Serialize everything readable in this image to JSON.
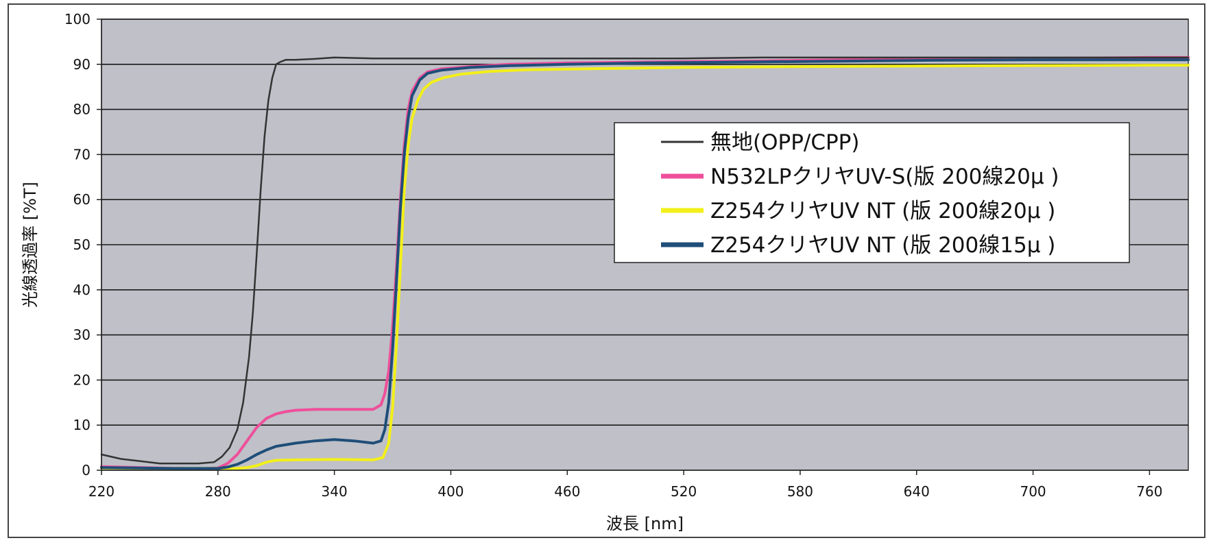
{
  "chart_data": {
    "type": "line",
    "title": "",
    "xlabel": "波長 [nm]",
    "ylabel": "光線透過率 [%T]",
    "xlim": [
      220,
      780
    ],
    "ylim": [
      0,
      100
    ],
    "xticks": [
      220,
      280,
      340,
      400,
      460,
      520,
      580,
      640,
      700,
      760
    ],
    "xtick_labels": [
      "220",
      "280",
      "340",
      "400",
      "460",
      "520",
      "580",
      "640",
      "700",
      "760"
    ],
    "yticks": [
      0,
      10,
      20,
      30,
      40,
      50,
      60,
      70,
      80,
      90,
      100
    ],
    "ytick_labels": [
      "0",
      "10",
      "20",
      "30",
      "40",
      "50",
      "60",
      "70",
      "80",
      "90",
      "100"
    ],
    "grid": "horizontal",
    "plot_background": "#bfc0c8",
    "legend_position": "upper-right inside plot",
    "series": [
      {
        "name": "無地(OPP/CPP)",
        "color": "#333333",
        "x": [
          220,
          230,
          240,
          250,
          260,
          270,
          278,
          282,
          286,
          290,
          293,
          296,
          298,
          300,
          302,
          304,
          306,
          308,
          310,
          312,
          315,
          320,
          330,
          340,
          360,
          380,
          400,
          440,
          480,
          520,
          560,
          600,
          640,
          680,
          720,
          760,
          780
        ],
        "y": [
          3.5,
          2.5,
          2,
          1.5,
          1.5,
          1.5,
          1.8,
          3,
          5,
          9,
          15,
          25,
          35,
          48,
          62,
          74,
          82,
          87,
          90,
          90.5,
          91,
          91,
          91.2,
          91.5,
          91.3,
          91.3,
          91.3,
          91.3,
          91.3,
          91.3,
          91.5,
          91.5,
          91.5,
          91.5,
          91.5,
          91.5,
          91.5
        ]
      },
      {
        "name": "N532LPクリヤUV-S(版 200線20µ )",
        "color": "#ee4f9a",
        "x": [
          220,
          250,
          270,
          280,
          285,
          290,
          295,
          300,
          305,
          310,
          315,
          320,
          330,
          340,
          350,
          360,
          364,
          366,
          368,
          370,
          372,
          374,
          376,
          378,
          380,
          384,
          388,
          395,
          410,
          430,
          460,
          500,
          550,
          600,
          650,
          700,
          760,
          780
        ],
        "y": [
          0.8,
          0.5,
          0.3,
          0.5,
          1.5,
          3.5,
          6.5,
          9.5,
          11.5,
          12.5,
          13,
          13.3,
          13.5,
          13.5,
          13.5,
          13.5,
          14.5,
          17,
          22,
          32,
          45,
          60,
          72,
          80,
          84,
          87,
          88.3,
          89,
          89.5,
          90,
          90.3,
          90.5,
          90.7,
          91,
          91.2,
          91.3,
          91.5,
          91.5
        ]
      },
      {
        "name": "Z254クリヤUV NT (版 200線20µ )",
        "color": "#f2ef1a",
        "x": [
          220,
          260,
          290,
          295,
          300,
          305,
          310,
          320,
          340,
          360,
          365,
          368,
          370,
          372,
          374,
          376,
          378,
          380,
          383,
          386,
          390,
          396,
          405,
          420,
          440,
          470,
          520,
          580,
          640,
          700,
          760,
          780
        ],
        "y": [
          0.5,
          0.4,
          0.4,
          0.6,
          1,
          1.8,
          2.2,
          2.3,
          2.4,
          2.3,
          2.8,
          6,
          14,
          28,
          45,
          62,
          72,
          78,
          82,
          84.5,
          86,
          87,
          87.8,
          88.4,
          88.8,
          89,
          89.3,
          89.5,
          89.6,
          89.7,
          89.8,
          89.8
        ]
      },
      {
        "name": "Z254クリヤUV NT (版 200線15µ )",
        "color": "#1f4e79",
        "x": [
          220,
          260,
          280,
          285,
          290,
          295,
          300,
          305,
          310,
          320,
          330,
          340,
          350,
          360,
          364,
          366,
          368,
          370,
          372,
          374,
          376,
          378,
          380,
          384,
          388,
          395,
          410,
          430,
          460,
          500,
          550,
          600,
          650,
          700,
          760,
          780
        ],
        "y": [
          0.6,
          0.4,
          0.4,
          0.7,
          1.3,
          2.3,
          3.5,
          4.5,
          5.3,
          6,
          6.5,
          6.8,
          6.5,
          6,
          6.5,
          9,
          15,
          27,
          42,
          58,
          70,
          78,
          83,
          86.5,
          88,
          88.7,
          89.3,
          89.7,
          90,
          90.3,
          90.5,
          90.7,
          90.9,
          91,
          91,
          91
        ]
      }
    ]
  }
}
